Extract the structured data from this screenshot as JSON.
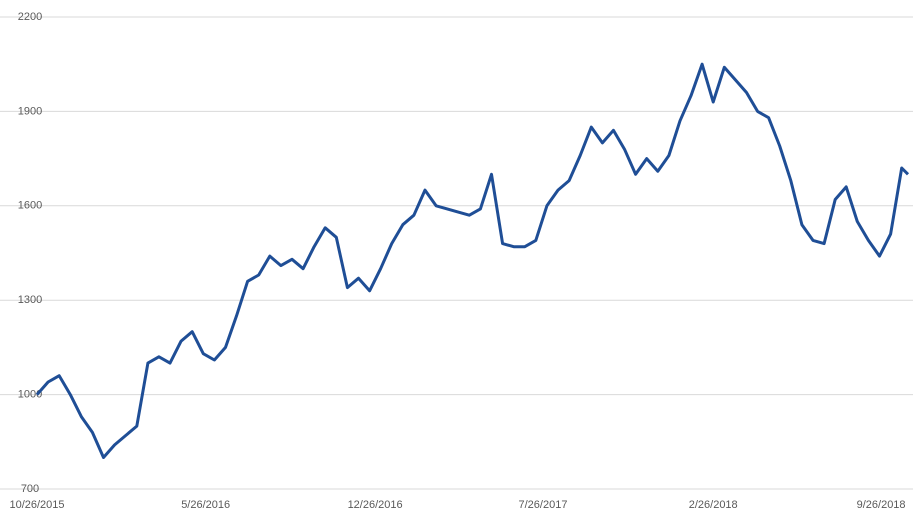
{
  "chart_data": {
    "type": "line",
    "x": [
      "10/26/2015",
      "11/9/2015",
      "11/23/2015",
      "12/7/2015",
      "12/21/2015",
      "1/4/2016",
      "1/18/2016",
      "2/1/2016",
      "2/15/2016",
      "2/29/2016",
      "3/14/2016",
      "3/28/2016",
      "4/11/2016",
      "4/25/2016",
      "5/9/2016",
      "5/23/2016",
      "6/6/2016",
      "6/20/2016",
      "7/4/2016",
      "7/18/2016",
      "8/1/2016",
      "8/15/2016",
      "8/29/2016",
      "9/12/2016",
      "9/26/2016",
      "10/10/2016",
      "10/24/2016",
      "11/7/2016",
      "11/21/2016",
      "12/5/2016",
      "12/19/2016",
      "1/2/2017",
      "1/16/2017",
      "1/30/2017",
      "2/13/2017",
      "2/27/2017",
      "3/13/2017",
      "3/27/2017",
      "4/10/2017",
      "4/24/2017",
      "5/8/2017",
      "5/22/2017",
      "6/5/2017",
      "6/19/2017",
      "7/3/2017",
      "7/17/2017",
      "7/31/2017",
      "8/14/2017",
      "8/28/2017",
      "9/11/2017",
      "9/25/2017",
      "10/9/2017",
      "10/23/2017",
      "11/6/2017",
      "11/20/2017",
      "12/4/2017",
      "12/18/2017",
      "1/1/2018",
      "1/15/2018",
      "1/29/2018",
      "2/12/2018",
      "2/26/2018",
      "3/12/2018",
      "3/26/2018",
      "4/9/2018",
      "4/23/2018",
      "5/7/2018",
      "5/21/2018",
      "6/4/2018",
      "6/18/2018",
      "7/2/2018",
      "7/16/2018",
      "7/30/2018",
      "8/13/2018",
      "8/27/2018",
      "9/10/2018",
      "9/24/2018",
      "10/8/2018",
      "10/22/2018",
      "10/30/2018"
    ],
    "series": [
      {
        "color": "#1f4e96",
        "values": [
          1000,
          1040,
          1060,
          1000,
          930,
          880,
          800,
          840,
          870,
          900,
          1100,
          1120,
          1100,
          1170,
          1200,
          1130,
          1110,
          1150,
          1250,
          1360,
          1380,
          1440,
          1410,
          1430,
          1400,
          1470,
          1530,
          1500,
          1340,
          1370,
          1330,
          1400,
          1480,
          1540,
          1570,
          1650,
          1600,
          1590,
          1580,
          1570,
          1590,
          1700,
          1480,
          1470,
          1470,
          1490,
          1600,
          1650,
          1680,
          1760,
          1850,
          1800,
          1840,
          1780,
          1700,
          1750,
          1710,
          1760,
          1870,
          1950,
          2050,
          1930,
          2040,
          2000,
          1960,
          1900,
          1880,
          1790,
          1680,
          1540,
          1490,
          1480,
          1620,
          1660,
          1550,
          1490,
          1440,
          1510,
          1720,
          1700
        ]
      }
    ],
    "xlim": [
      "10/26/2015",
      "10/30/2018"
    ],
    "xticks": [
      "10/26/2015",
      "5/26/2016",
      "12/26/2016",
      "7/26/2017",
      "2/26/2018",
      "9/26/2018"
    ],
    "ylim": [
      700,
      2200
    ],
    "yticks": [
      700,
      1000,
      1300,
      1600,
      1900,
      2200
    ],
    "grid": true
  }
}
